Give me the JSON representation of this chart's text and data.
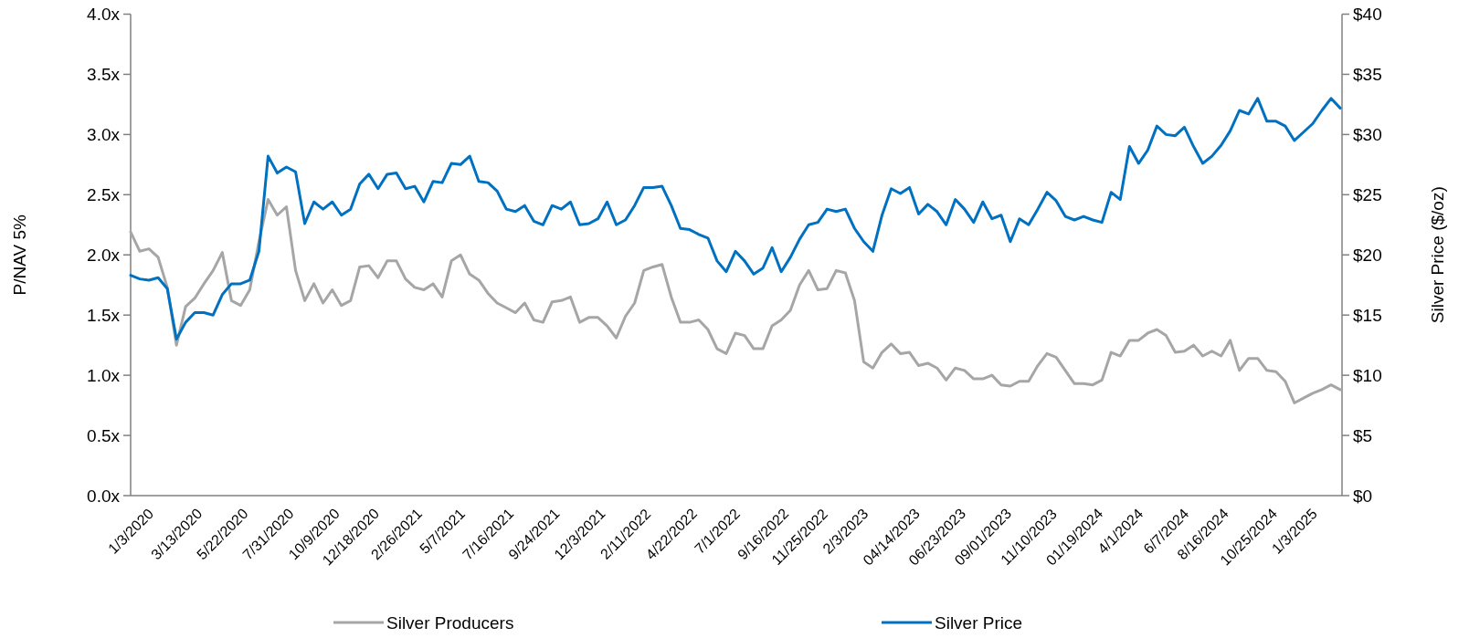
{
  "chart_data": {
    "type": "line",
    "ylabel": "P/NAV 5%",
    "y2label": "Silver Price ($/oz)",
    "categories": [
      "1/3/2020",
      null,
      null,
      null,
      null,
      "3/13/2020",
      null,
      null,
      null,
      null,
      "5/22/2020",
      null,
      null,
      null,
      null,
      "7/31/2020",
      null,
      null,
      null,
      null,
      "10/9/2020",
      null,
      null,
      null,
      "12/18/2020",
      null,
      null,
      null,
      null,
      "2/26/2021",
      null,
      null,
      null,
      null,
      "5/7/2021",
      null,
      null,
      null,
      null,
      "7/16/2021",
      null,
      null,
      null,
      null,
      "9/24/2021",
      null,
      null,
      null,
      null,
      "12/3/2021",
      null,
      null,
      null,
      null,
      "2/11/2022",
      null,
      null,
      null,
      null,
      "4/22/2022",
      null,
      null,
      null,
      null,
      "7/1/2022",
      null,
      null,
      null,
      null,
      "9/16/2022",
      null,
      null,
      null,
      "11/25/2022",
      null,
      null,
      null,
      null,
      "2/3/2023",
      null,
      null,
      null,
      null,
      "04/14/2023",
      null,
      null,
      null,
      null,
      "06/23/2023",
      null,
      null,
      null,
      null,
      "09/01/2023",
      null,
      null,
      null,
      null,
      "11/10/2023",
      null,
      null,
      null,
      null,
      "01/19/2024",
      null,
      null,
      null,
      null,
      "4/1/2024",
      null,
      null,
      null,
      null,
      "6/7/2024",
      null,
      null,
      null,
      "8/16/2024",
      null,
      null,
      null,
      null,
      "10/25/2024",
      null,
      null,
      null,
      null,
      "1/3/2025",
      null,
      null,
      null,
      null,
      null
    ],
    "series": [
      {
        "name": "Silver Producers",
        "color": "#a6a6a6",
        "values": [
          2.19,
          2.03,
          2.05,
          1.98,
          1.73,
          1.25,
          1.57,
          1.64,
          1.76,
          1.87,
          2.02,
          1.62,
          1.58,
          1.71,
          2.11,
          2.46,
          2.33,
          2.4,
          1.87,
          1.62,
          1.76,
          1.6,
          1.71,
          1.58,
          1.62,
          1.9,
          1.91,
          1.81,
          1.95,
          1.95,
          1.8,
          1.73,
          1.71,
          1.76,
          1.65,
          1.95,
          2.0,
          1.84,
          1.79,
          1.68,
          1.6,
          1.56,
          1.52,
          1.6,
          1.46,
          1.44,
          1.61,
          1.62,
          1.65,
          1.44,
          1.48,
          1.48,
          1.41,
          1.31,
          1.49,
          1.6,
          1.87,
          1.9,
          1.92,
          1.65,
          1.44,
          1.44,
          1.46,
          1.38,
          1.22,
          1.18,
          1.35,
          1.33,
          1.22,
          1.22,
          1.41,
          1.46,
          1.54,
          1.75,
          1.87,
          1.71,
          1.72,
          1.87,
          1.85,
          1.62,
          1.11,
          1.06,
          1.19,
          1.26,
          1.18,
          1.19,
          1.08,
          1.1,
          1.06,
          0.96,
          1.06,
          1.04,
          0.97,
          0.97,
          1.0,
          0.92,
          0.91,
          0.95,
          0.95,
          1.08,
          1.18,
          1.15,
          1.04,
          0.93,
          0.93,
          0.92,
          0.96,
          1.19,
          1.16,
          1.29,
          1.29,
          1.35,
          1.38,
          1.33,
          1.19,
          1.2,
          1.25,
          1.16,
          1.2,
          1.16,
          1.29,
          1.04,
          1.14,
          1.14,
          1.04,
          1.03,
          0.95,
          0.77,
          0.81,
          0.85,
          0.88,
          0.92,
          0.88
        ]
      },
      {
        "name": "Silver Price",
        "color": "#0070c0",
        "axis": "y2",
        "values": [
          18.3,
          18.0,
          17.9,
          18.1,
          17.2,
          13.0,
          14.4,
          15.2,
          15.2,
          15.0,
          16.7,
          17.6,
          17.6,
          17.9,
          20.3,
          28.2,
          26.8,
          27.3,
          26.9,
          22.6,
          24.4,
          23.8,
          24.4,
          23.3,
          23.8,
          25.9,
          26.7,
          25.5,
          26.7,
          26.8,
          25.5,
          25.7,
          24.4,
          26.1,
          26.0,
          27.6,
          27.5,
          28.2,
          26.1,
          26.0,
          25.3,
          23.8,
          23.6,
          24.1,
          22.8,
          22.5,
          24.1,
          23.8,
          24.4,
          22.5,
          22.6,
          23.0,
          24.4,
          22.5,
          22.9,
          24.1,
          25.6,
          25.6,
          25.7,
          24.1,
          22.2,
          22.1,
          21.7,
          21.4,
          19.5,
          18.6,
          20.3,
          19.5,
          18.4,
          18.9,
          20.6,
          18.6,
          19.8,
          21.3,
          22.5,
          22.7,
          23.8,
          23.6,
          23.8,
          22.2,
          21.1,
          20.3,
          23.3,
          25.5,
          25.1,
          25.6,
          23.4,
          24.2,
          23.6,
          22.5,
          24.6,
          23.8,
          22.7,
          24.4,
          23.0,
          23.3,
          21.1,
          23.0,
          22.5,
          23.8,
          25.2,
          24.5,
          23.2,
          22.9,
          23.2,
          22.9,
          22.7,
          25.2,
          24.6,
          29.0,
          27.6,
          28.7,
          30.7,
          30.0,
          29.9,
          30.6,
          29.0,
          27.6,
          28.2,
          29.1,
          30.3,
          32.0,
          31.7,
          33.0,
          31.1,
          31.1,
          30.7,
          29.5,
          30.2,
          30.9,
          32.0,
          33.0,
          32.2
        ]
      }
    ],
    "ylim": [
      0,
      4
    ],
    "yticks": [
      {
        "value": 0,
        "label": "0.0x"
      },
      {
        "value": 0.5,
        "label": "0.5x"
      },
      {
        "value": 1,
        "label": "1.0x"
      },
      {
        "value": 1.5,
        "label": "1.5x"
      },
      {
        "value": 2,
        "label": "2.0x"
      },
      {
        "value": 2.5,
        "label": "2.5x"
      },
      {
        "value": 3,
        "label": "3.0x"
      },
      {
        "value": 3.5,
        "label": "3.5x"
      },
      {
        "value": 4,
        "label": "4.0x"
      }
    ],
    "y2lim": [
      0,
      40
    ],
    "y2ticks": [
      {
        "value": 0,
        "label": "$0"
      },
      {
        "value": 5,
        "label": "$5"
      },
      {
        "value": 10,
        "label": "$10"
      },
      {
        "value": 15,
        "label": "$15"
      },
      {
        "value": 20,
        "label": "$20"
      },
      {
        "value": 25,
        "label": "$25"
      },
      {
        "value": 30,
        "label": "$30"
      },
      {
        "value": 35,
        "label": "$35"
      },
      {
        "value": 40,
        "label": "$40"
      }
    ],
    "grid": false,
    "legend": "bottom",
    "marker": "none",
    "line_style": "solid"
  }
}
